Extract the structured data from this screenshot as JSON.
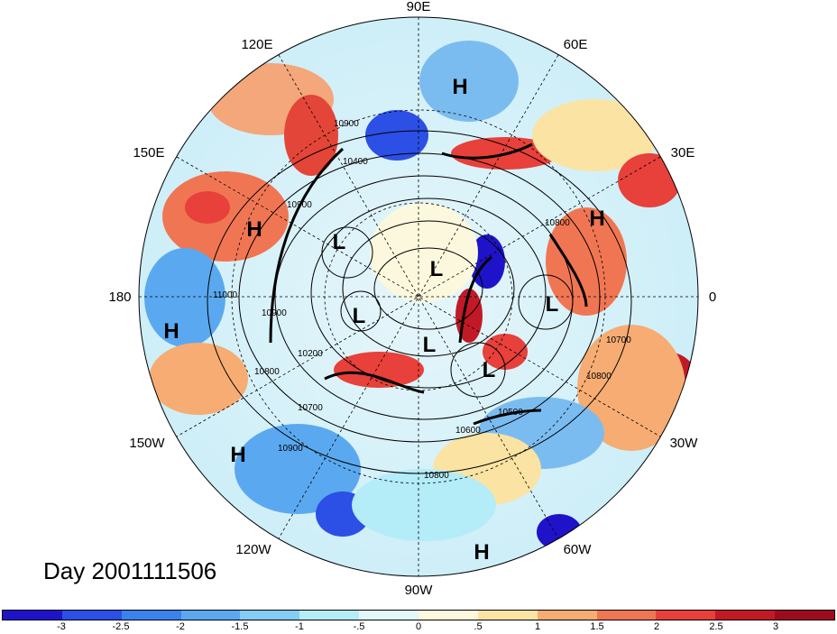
{
  "title": "Day 2001111506",
  "longitude_labels": [
    "90E",
    "60E",
    "30E",
    "0",
    "30W",
    "60W",
    "90W",
    "120W",
    "150W",
    "180",
    "150E",
    "120E"
  ],
  "pressure_centers": [
    "H",
    "H",
    "H",
    "H",
    "H",
    "H",
    "L",
    "L",
    "L",
    "L",
    "L",
    "L"
  ],
  "contour_labels": [
    "10900",
    "10400",
    "10900",
    "11000",
    "10900",
    "10200",
    "10800",
    "10700",
    "10900",
    "10600",
    "10500",
    "10800",
    "10800",
    "10700",
    "10800"
  ],
  "colorbar": {
    "labels": [
      "-3",
      "-2.5",
      "-2",
      "-1.5",
      "-1",
      "-.5",
      "0",
      ".5",
      "1",
      "1.5",
      "2",
      "2.5",
      "3"
    ],
    "colors": [
      "#1f13c9",
      "#2c4fe6",
      "#3c82ec",
      "#5aa9f0",
      "#84cdf5",
      "#b4ecf8",
      "#e2f8fb",
      "#fbf8dd",
      "#fbe3a3",
      "#f6ac72",
      "#f07653",
      "#e8403a",
      "#c11a26",
      "#9e0b1e"
    ]
  },
  "field_colors": {
    "ocean": "#b8e6f7",
    "land_outline": "#000000"
  }
}
